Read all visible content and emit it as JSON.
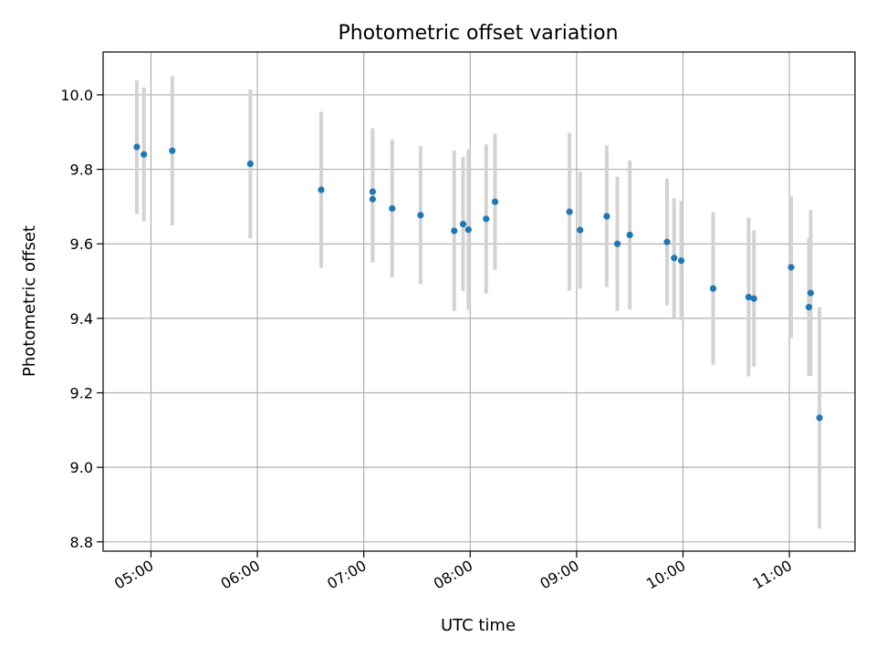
{
  "chart_data": {
    "type": "scatter",
    "title": "Photometric offset variation",
    "xlabel": "UTC time",
    "ylabel": "Photometric offset",
    "x_axis_type": "time",
    "xlim": [
      "04:33",
      "11:37"
    ],
    "ylim": [
      8.775,
      10.115
    ],
    "x_ticks": [
      "05:00",
      "06:00",
      "07:00",
      "08:00",
      "09:00",
      "10:00",
      "11:00"
    ],
    "y_ticks": [
      8.8,
      9.0,
      9.2,
      9.4,
      9.6,
      9.8,
      10.0
    ],
    "y_tick_labels": [
      "8.8",
      "9.0",
      "9.2",
      "9.4",
      "9.6",
      "9.8",
      "10.0"
    ],
    "grid": true,
    "legend": "none",
    "colors": {
      "points": "#1f77b4",
      "errorbars": "#d3d3d3",
      "grid": "#b0b0b0"
    },
    "series": [
      {
        "points": [
          {
            "x": "04:52",
            "y": 9.86,
            "err": 0.18
          },
          {
            "x": "04:56",
            "y": 9.84,
            "err": 0.18
          },
          {
            "x": "05:12",
            "y": 9.85,
            "err": 0.2
          },
          {
            "x": "05:56",
            "y": 9.815,
            "err": 0.2
          },
          {
            "x": "06:36",
            "y": 9.745,
            "err": 0.21
          },
          {
            "x": "07:05",
            "y": 9.74,
            "err": 0.17
          },
          {
            "x": "07:05",
            "y": 9.72,
            "err": 0.17
          },
          {
            "x": "07:16",
            "y": 9.695,
            "err": 0.185
          },
          {
            "x": "07:32",
            "y": 9.677,
            "err": 0.185
          },
          {
            "x": "07:51",
            "y": 9.635,
            "err": 0.215
          },
          {
            "x": "07:56",
            "y": 9.653,
            "err": 0.18
          },
          {
            "x": "07:59",
            "y": 9.638,
            "err": 0.215
          },
          {
            "x": "08:09",
            "y": 9.667,
            "err": 0.2
          },
          {
            "x": "08:14",
            "y": 9.713,
            "err": 0.183
          },
          {
            "x": "08:56",
            "y": 9.686,
            "err": 0.212
          },
          {
            "x": "09:02",
            "y": 9.637,
            "err": 0.157
          },
          {
            "x": "09:17",
            "y": 9.674,
            "err": 0.19
          },
          {
            "x": "09:23",
            "y": 9.6,
            "err": 0.18
          },
          {
            "x": "09:30",
            "y": 9.624,
            "err": 0.2
          },
          {
            "x": "09:51",
            "y": 9.605,
            "err": 0.17
          },
          {
            "x": "09:55",
            "y": 9.562,
            "err": 0.16
          },
          {
            "x": "09:59",
            "y": 9.555,
            "err": 0.16
          },
          {
            "x": "10:17",
            "y": 9.48,
            "err": 0.205
          },
          {
            "x": "10:37",
            "y": 9.457,
            "err": 0.213
          },
          {
            "x": "10:40",
            "y": 9.453,
            "err": 0.183
          },
          {
            "x": "11:01",
            "y": 9.537,
            "err": 0.19
          },
          {
            "x": "11:11",
            "y": 9.43,
            "err": 0.185
          },
          {
            "x": "11:12",
            "y": 9.468,
            "err": 0.223
          },
          {
            "x": "11:17",
            "y": 9.133,
            "err": 0.297
          }
        ]
      }
    ]
  }
}
